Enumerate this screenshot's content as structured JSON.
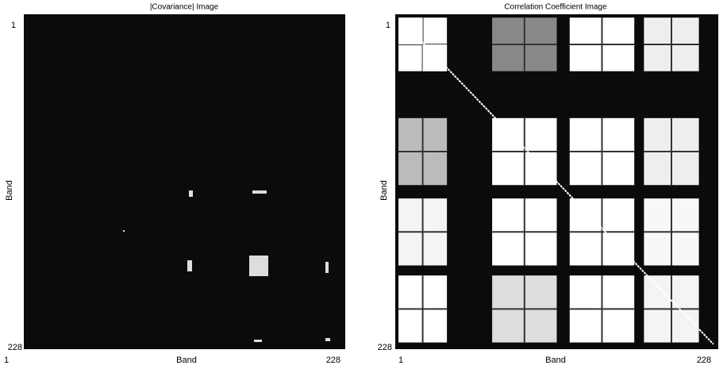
{
  "panels": [
    {
      "title": "|Covariance| Image",
      "y_label": "Band",
      "y_top": "1",
      "y_bottom": "228",
      "x_label": "Band",
      "x_left": "1",
      "x_right": "228"
    },
    {
      "title": "Correlation Coefficient Image",
      "y_label": "Band",
      "y_top": "1",
      "y_bottom": "228",
      "x_label": "Band",
      "x_left": "1",
      "x_right": "228"
    }
  ]
}
